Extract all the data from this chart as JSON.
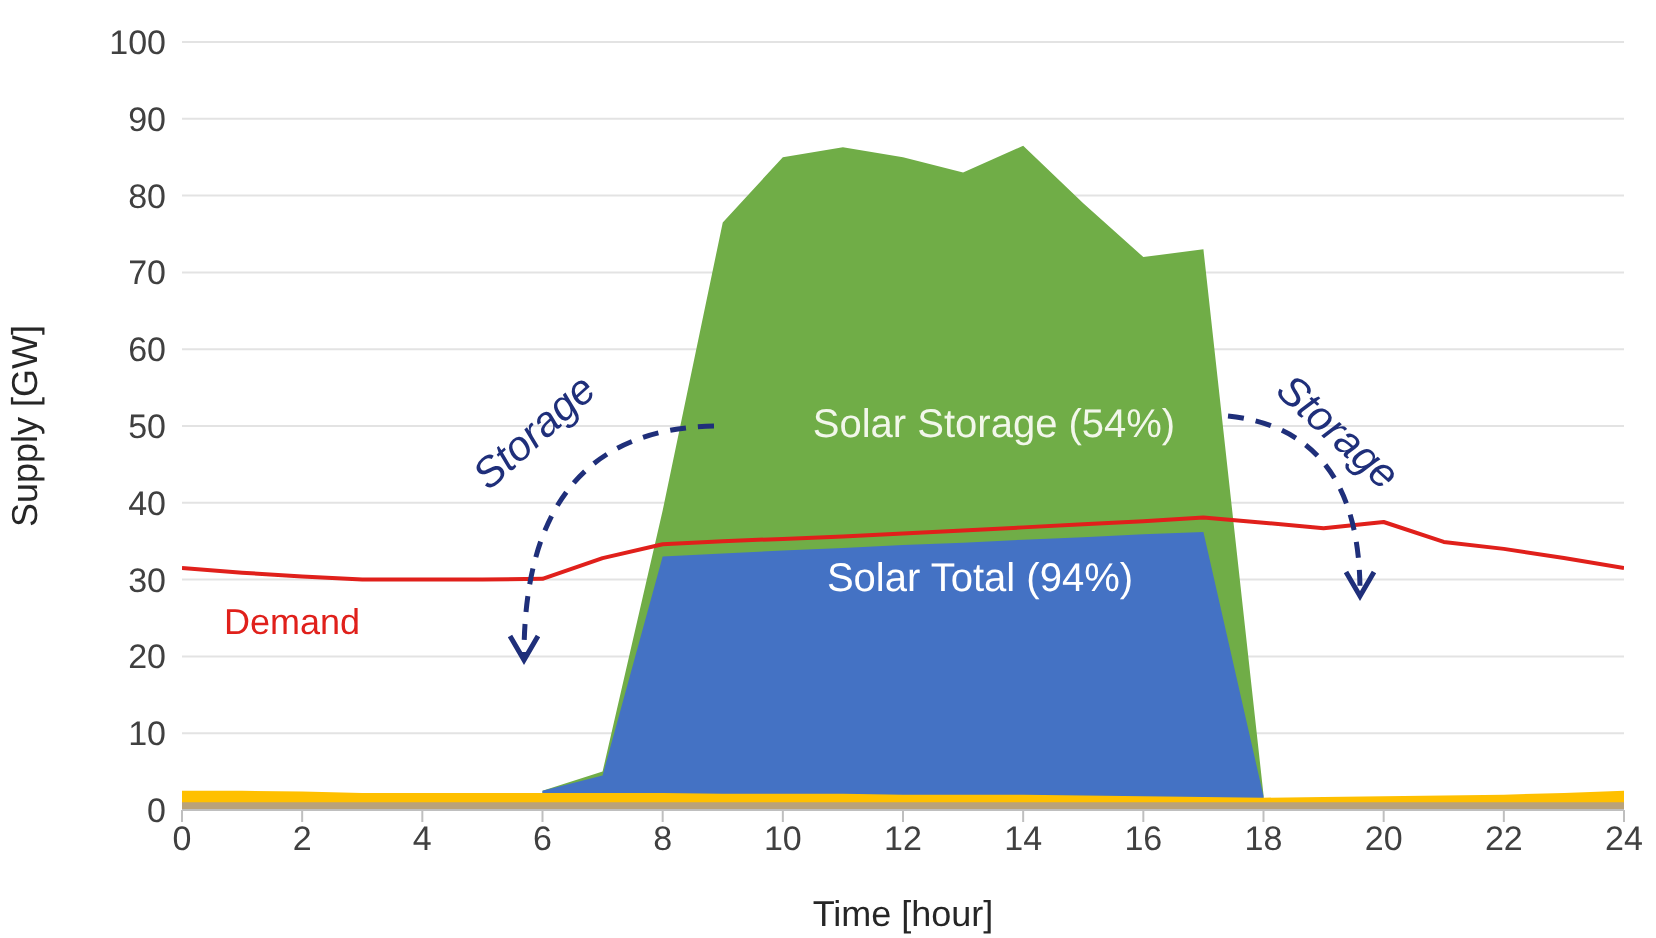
{
  "chart_data": {
    "type": "area",
    "xlabel": "Time [hour]",
    "ylabel": "Supply [GW]",
    "x": [
      0,
      1,
      2,
      3,
      4,
      5,
      6,
      7,
      8,
      9,
      10,
      11,
      12,
      13,
      14,
      15,
      16,
      17,
      18,
      19,
      20,
      21,
      22,
      23,
      24
    ],
    "series": [
      {
        "name": "Solar Storage (54%)",
        "color": "#70ad47",
        "values": [
          null,
          null,
          null,
          null,
          null,
          null,
          2.5,
          5,
          39,
          76.5,
          85,
          86.3,
          85,
          83,
          86.5,
          79,
          72,
          73,
          2,
          null,
          null,
          null,
          null,
          null,
          null
        ]
      },
      {
        "name": "Solar Total (94%)",
        "color": "#4472c4",
        "values": [
          null,
          null,
          null,
          null,
          null,
          null,
          2.5,
          4.5,
          33,
          33.4,
          33.8,
          34.1,
          34.5,
          34.8,
          35.2,
          35.5,
          35.9,
          36.2,
          1.8,
          null,
          null,
          null,
          null,
          null,
          null
        ]
      },
      {
        "color": "#ffc000",
        "values": [
          2.5,
          2.5,
          2.4,
          2.2,
          2.2,
          2.2,
          2.2,
          2.2,
          2.2,
          2.1,
          2.1,
          2.1,
          2,
          2,
          2,
          1.9,
          1.8,
          1.7,
          1.6,
          1.7,
          1.8,
          1.9,
          2,
          2.2,
          2.5
        ]
      },
      {
        "color": "#b9a27a",
        "values": [
          1,
          1,
          1,
          1,
          1,
          1,
          1,
          1,
          1,
          1,
          1,
          1,
          1,
          1,
          1,
          1,
          1,
          1,
          1,
          1,
          1,
          1,
          1,
          1,
          1
        ]
      },
      {
        "name": "Demand",
        "type": "line",
        "color": "#e0201b",
        "values": [
          31.5,
          30.9,
          30.4,
          30,
          30,
          30,
          30.1,
          32.8,
          34.6,
          35,
          35.3,
          35.6,
          36,
          36.4,
          36.8,
          37.2,
          37.6,
          38.1,
          37.4,
          36.7,
          37.5,
          34.9,
          34,
          32.8,
          31.5
        ]
      }
    ],
    "annotations": [
      "Storage",
      "Storage"
    ],
    "xlim": [
      0,
      24
    ],
    "xticks": [
      0,
      2,
      4,
      6,
      8,
      10,
      12,
      14,
      16,
      18,
      20,
      22,
      24
    ],
    "ylim": [
      0,
      100
    ],
    "yticks": [
      0,
      10,
      20,
      30,
      40,
      50,
      60,
      70,
      80,
      90,
      100
    ],
    "grid": "y"
  }
}
